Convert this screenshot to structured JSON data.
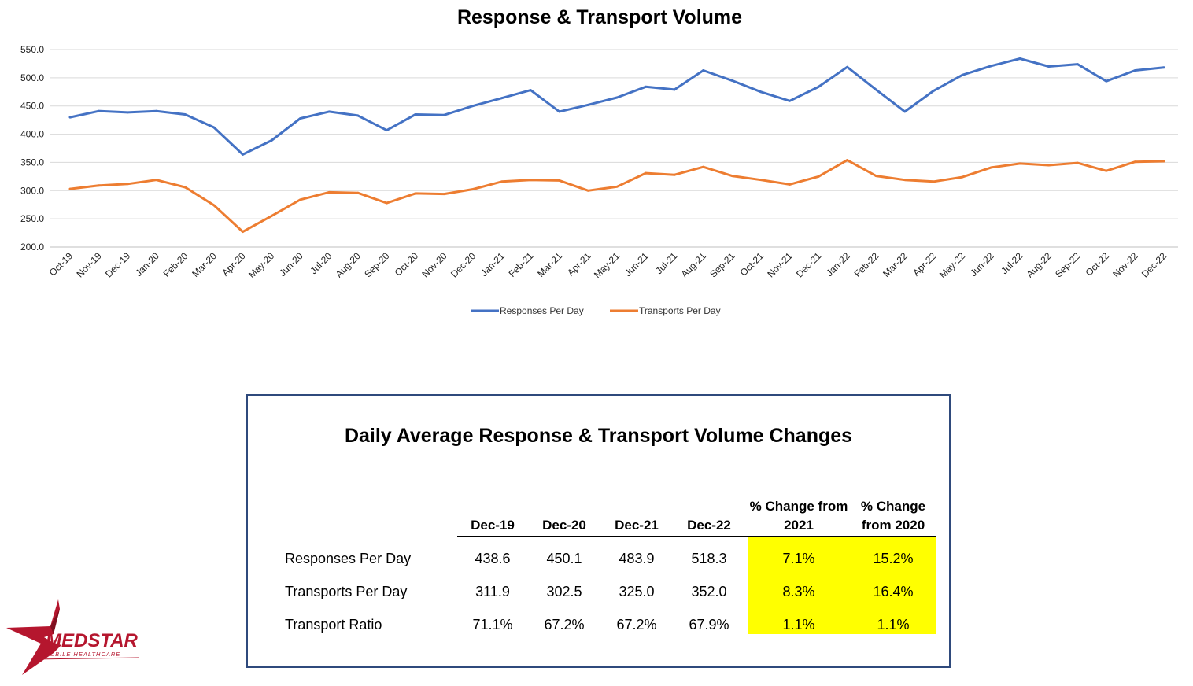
{
  "chart_data": {
    "type": "line",
    "title": "Response & Transport Volume",
    "categories": [
      "Oct-19",
      "Nov-19",
      "Dec-19",
      "Jan-20",
      "Feb-20",
      "Mar-20",
      "Apr-20",
      "May-20",
      "Jun-20",
      "Jul-20",
      "Aug-20",
      "Sep-20",
      "Oct-20",
      "Nov-20",
      "Dec-20",
      "Jan-21",
      "Feb-21",
      "Mar-21",
      "Apr-21",
      "May-21",
      "Jun-21",
      "Jul-21",
      "Aug-21",
      "Sep-21",
      "Oct-21",
      "Nov-21",
      "Dec-21",
      "Jan-22",
      "Feb-22",
      "Mar-22",
      "Apr-22",
      "May-22",
      "Jun-22",
      "Jul-22",
      "Aug-22",
      "Sep-22",
      "Oct-22",
      "Nov-22",
      "Dec-22"
    ],
    "series": [
      {
        "name": "Responses Per Day",
        "color": "#4472c4",
        "values": [
          430,
          441,
          438.6,
          441,
          435,
          412,
          364,
          389,
          428,
          440,
          433,
          407,
          435,
          434,
          450.1,
          464,
          478,
          440,
          452,
          465,
          484,
          479,
          513,
          495,
          475,
          459,
          483.9,
          519,
          479,
          440,
          477,
          505,
          521,
          534,
          520,
          524,
          494,
          513,
          518.3
        ]
      },
      {
        "name": "Transports Per Day",
        "color": "#ed7d31",
        "values": [
          303,
          309,
          311.9,
          319,
          306,
          274,
          227,
          255,
          284,
          297,
          296,
          278,
          295,
          294,
          302.5,
          316,
          319,
          318,
          300,
          307,
          331,
          328,
          342,
          326,
          319,
          311,
          325.0,
          354,
          326,
          319,
          316,
          324,
          341,
          348,
          345,
          349,
          335,
          351,
          352.0
        ]
      }
    ],
    "ylim": [
      200,
      550
    ],
    "yticks": [
      "550.0",
      "500.0",
      "450.0",
      "400.0",
      "350.0",
      "300.0",
      "250.0",
      "200.0"
    ],
    "ytick_values": [
      550,
      500,
      450,
      400,
      350,
      300,
      250,
      200
    ],
    "grid": true,
    "legend": "bottom"
  },
  "table": {
    "title": "Daily Average Response & Transport Volume Changes",
    "headers": [
      "Dec-19",
      "Dec-20",
      "Dec-21",
      "Dec-22"
    ],
    "change_headers": [
      {
        "line1": "% Change from",
        "line2": "2021"
      },
      {
        "line1": "% Change",
        "line2": "from 2020"
      }
    ],
    "rows": [
      {
        "label": "Responses Per Day",
        "values": [
          "438.6",
          "450.1",
          "483.9",
          "518.3"
        ],
        "changes": [
          "7.1%",
          "15.2%"
        ]
      },
      {
        "label": "Transports Per Day",
        "values": [
          "311.9",
          "302.5",
          "325.0",
          "352.0"
        ],
        "changes": [
          "8.3%",
          "16.4%"
        ]
      },
      {
        "label": "Transport Ratio",
        "values": [
          "71.1%",
          "67.2%",
          "67.2%",
          "67.9%"
        ],
        "changes": [
          "1.1%",
          "1.1%"
        ]
      }
    ],
    "highlight_color": "#ffff00",
    "border_color": "#2f4a7c"
  },
  "logo": {
    "text": "MEDSTAR",
    "subtext": "MOBILE HEALTHCARE",
    "color": "#b5162e",
    "icon": "star-logo-icon"
  }
}
